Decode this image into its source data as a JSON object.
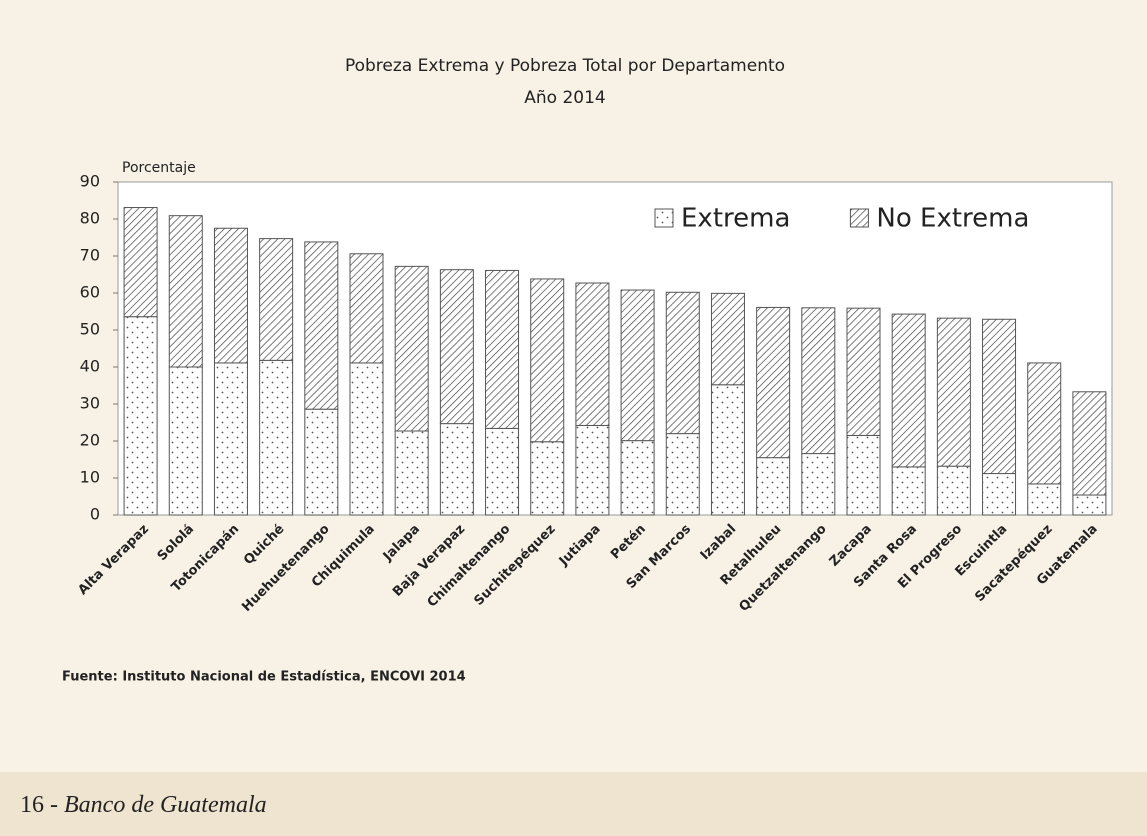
{
  "chart_data": {
    "type": "stacked_bar",
    "title": "Pobreza Extrema y Pobreza Total por Departamento",
    "subtitle": "Año 2014",
    "y_label": "Porcentaje",
    "categories": [
      "Alta Verapaz",
      "Sololá",
      "Totonicapán",
      "Quiché",
      "Huehuetenango",
      "Chiquimula",
      "Jalapa",
      "Baja Verapaz",
      "Chimaltenango",
      "Suchitepéquez",
      "Jutiapa",
      "Petén",
      "San Marcos",
      "Izabal",
      "Retalhuleu",
      "Quetzaltenango",
      "Zacapa",
      "Santa Rosa",
      "El Progreso",
      "Escuintla",
      "Sacatepéquez",
      "Guatemala"
    ],
    "series": [
      {
        "name": "Extrema",
        "pattern": "dots",
        "color": "#555555",
        "values": [
          53.6,
          40.0,
          41.1,
          41.8,
          28.6,
          41.1,
          22.7,
          24.7,
          23.4,
          19.8,
          24.2,
          20.1,
          22.0,
          35.2,
          15.5,
          16.6,
          21.5,
          13.0,
          13.2,
          11.2,
          8.4,
          5.4
        ]
      },
      {
        "name": "No Extrema",
        "pattern": "diagonal",
        "color": "#555555",
        "values": [
          29.5,
          40.9,
          36.4,
          32.9,
          45.2,
          29.5,
          44.5,
          41.6,
          42.7,
          44.0,
          38.5,
          40.7,
          38.2,
          24.7,
          40.6,
          39.4,
          34.4,
          41.3,
          40.0,
          41.7,
          32.7,
          27.9
        ]
      }
    ],
    "ylim": [
      0,
      90
    ],
    "yticks": [
      0,
      10,
      20,
      30,
      40,
      50,
      60,
      70,
      80,
      90
    ],
    "grid": false,
    "legend": "upper right",
    "source": "Fuente: Instituto Nacional de Estadística, ENCOVI 2014"
  },
  "footer": {
    "number": "16 -",
    "text": "Banco de Guatemala"
  }
}
